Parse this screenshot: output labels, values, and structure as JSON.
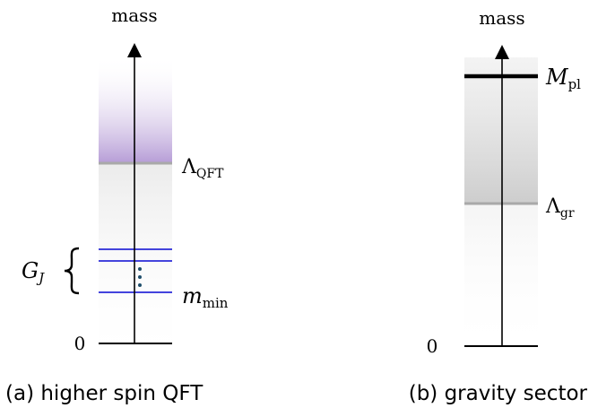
{
  "colors": {
    "purple": "#b89fd4",
    "gray_band": "#cfcfcf",
    "blue_level": "#2a2ad8",
    "dots": "#1f4e6b",
    "axis": "#000000"
  },
  "panel_a": {
    "axis_label": "mass",
    "cutoff_symbol": "Λ",
    "cutoff_sub": "QFT",
    "family_symbol": "G",
    "family_sub": "J",
    "min_symbol": "m",
    "min_sub": "min",
    "zero_label": "0",
    "caption": "(a) higher spin QFT"
  },
  "panel_b": {
    "axis_label": "mass",
    "planck_symbol": "M",
    "planck_sub": "pl",
    "cutoff_symbol": "Λ",
    "cutoff_sub": "gr",
    "zero_label": "0",
    "caption": "(b) gravity sector"
  }
}
